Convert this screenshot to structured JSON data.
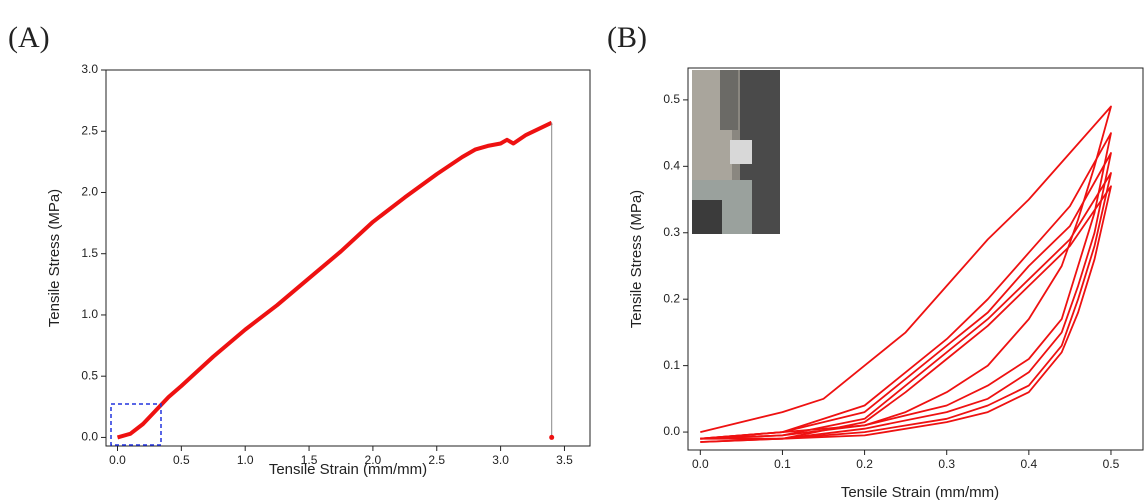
{
  "chart_data": [
    {
      "type": "line",
      "title": "(A)",
      "x_label": "Tensile Strain (mm/mm)",
      "y_label": "Tensile Stress (MPa)",
      "xlim": [
        -0.09,
        3.7
      ],
      "ylim": [
        -0.07,
        3.0
      ],
      "xticks": [
        {
          "value": 0,
          "label": "0.0"
        },
        0.5,
        {
          "value": 1,
          "label": "1.0"
        },
        1.5,
        {
          "value": 2,
          "label": "2.0"
        },
        2.5,
        {
          "value": 3,
          "label": "3.0"
        },
        3.5
      ],
      "yticks": [
        {
          "value": 0,
          "label": "0.0"
        },
        0.5,
        {
          "value": 1,
          "label": "1.0"
        },
        1.5,
        {
          "value": 2,
          "label": "2.0"
        },
        2.5,
        {
          "value": 3,
          "label": "3.0"
        }
      ],
      "series": [
        {
          "color": "#ee1111",
          "x": [
            0,
            0.1,
            0.2,
            0.3,
            0.4,
            0.5,
            0.75,
            1.0,
            1.25,
            1.5,
            1.75,
            2.0,
            2.25,
            2.5,
            2.7,
            2.8,
            2.9,
            3.0,
            3.05,
            3.1,
            3.2,
            3.3,
            3.4
          ],
          "values": [
            0,
            0.03,
            0.11,
            0.22,
            0.33,
            0.42,
            0.66,
            0.88,
            1.08,
            1.3,
            1.52,
            1.76,
            1.96,
            2.15,
            2.29,
            2.35,
            2.38,
            2.4,
            2.43,
            2.4,
            2.47,
            2.52,
            2.57
          ]
        },
        {
          "color": "#888888",
          "x": [
            3.4,
            3.4
          ],
          "values": [
            2.57,
            0
          ]
        }
      ]
    },
    {
      "type": "line",
      "title": "(B)",
      "x_label": "Tensile Strain (mm/mm)",
      "y_label": "Tensile Stress (MPa)",
      "xlim": [
        -0.015,
        0.539
      ],
      "ylim": [
        -0.027,
        0.548
      ],
      "xticks": [
        {
          "value": 0,
          "label": "0.0"
        },
        0.1,
        0.2,
        0.3,
        0.4,
        0.5
      ],
      "yticks": [
        {
          "value": 0,
          "label": "0.0"
        },
        0.1,
        0.2,
        0.3,
        0.4,
        0.5
      ],
      "series": [
        {
          "color": "#ee1111",
          "x": [
            0,
            0.1,
            0.15,
            0.2,
            0.25,
            0.3,
            0.35,
            0.4,
            0.45,
            0.5,
            0.48,
            0.46,
            0.44,
            0.4,
            0.35,
            0.3,
            0.25,
            0.2,
            0.1,
            0
          ],
          "values": [
            0,
            0.03,
            0.05,
            0.1,
            0.15,
            0.22,
            0.29,
            0.35,
            0.42,
            0.49,
            0.4,
            0.32,
            0.25,
            0.17,
            0.1,
            0.06,
            0.03,
            0.01,
            0,
            -0.01
          ]
        },
        {
          "color": "#ee1111",
          "x": [
            0,
            0.1,
            0.2,
            0.25,
            0.3,
            0.35,
            0.4,
            0.45,
            0.5,
            0.48,
            0.46,
            0.44,
            0.4,
            0.35,
            0.3,
            0.2,
            0.1,
            0
          ],
          "values": [
            -0.01,
            0,
            0.04,
            0.09,
            0.14,
            0.2,
            0.27,
            0.34,
            0.45,
            0.33,
            0.25,
            0.17,
            0.11,
            0.07,
            0.04,
            0.01,
            -0.005,
            -0.01
          ]
        },
        {
          "color": "#ee1111",
          "x": [
            0,
            0.1,
            0.2,
            0.25,
            0.3,
            0.35,
            0.4,
            0.45,
            0.5,
            0.48,
            0.46,
            0.44,
            0.4,
            0.35,
            0.3,
            0.2,
            0.1,
            0
          ],
          "values": [
            -0.01,
            0,
            0.03,
            0.08,
            0.13,
            0.18,
            0.25,
            0.31,
            0.42,
            0.3,
            0.22,
            0.15,
            0.09,
            0.05,
            0.03,
            0.005,
            -0.01,
            -0.01
          ]
        },
        {
          "color": "#ee1111",
          "x": [
            0,
            0.1,
            0.2,
            0.25,
            0.3,
            0.35,
            0.4,
            0.45,
            0.5,
            0.48,
            0.46,
            0.44,
            0.4,
            0.35,
            0.3,
            0.2,
            0.1,
            0
          ],
          "values": [
            -0.01,
            -0.005,
            0.02,
            0.07,
            0.12,
            0.17,
            0.23,
            0.29,
            0.39,
            0.28,
            0.2,
            0.13,
            0.07,
            0.04,
            0.02,
            0,
            -0.01,
            -0.015
          ]
        },
        {
          "color": "#ee1111",
          "x": [
            0,
            0.1,
            0.2,
            0.25,
            0.3,
            0.35,
            0.4,
            0.45,
            0.5,
            0.48,
            0.46,
            0.44,
            0.4,
            0.35,
            0.3,
            0.2,
            0.1,
            0
          ],
          "values": [
            -0.015,
            -0.01,
            0.015,
            0.06,
            0.11,
            0.16,
            0.22,
            0.28,
            0.37,
            0.26,
            0.18,
            0.12,
            0.06,
            0.03,
            0.015,
            -0.005,
            -0.01,
            -0.015
          ]
        }
      ]
    }
  ]
}
